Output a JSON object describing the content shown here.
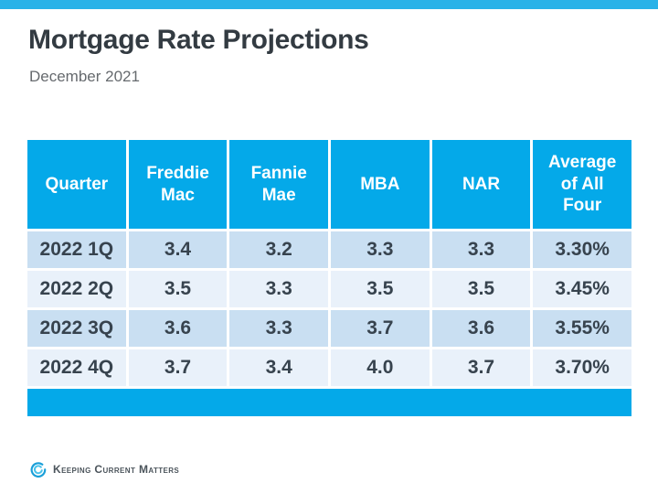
{
  "page": {
    "title": "Mortgage Rate Projections",
    "subtitle": "December 2021"
  },
  "colors": {
    "top_bar_blue": "#29b2e8",
    "table_header_blue": "#04a9e9",
    "row_dark": "#c9dff2",
    "row_light": "#e9f1fa",
    "cell_text": "#37434e",
    "title_text": "#333b42"
  },
  "table": {
    "columns": [
      "Quarter",
      "Freddie Mac",
      "Fannie Mae",
      "MBA",
      "NAR",
      "Average of All Four"
    ],
    "rows": [
      [
        "2022 1Q",
        "3.4",
        "3.2",
        "3.3",
        "3.3",
        "3.30%"
      ],
      [
        "2022 2Q",
        "3.5",
        "3.3",
        "3.5",
        "3.5",
        "3.45%"
      ],
      [
        "2022 3Q",
        "3.6",
        "3.3",
        "3.7",
        "3.6",
        "3.55%"
      ],
      [
        "2022 4Q",
        "3.7",
        "3.4",
        "4.0",
        "3.7",
        "3.70%"
      ]
    ]
  },
  "chart_data": {
    "type": "table",
    "title": "Mortgage Rate Projections",
    "subtitle": "December 2021",
    "columns": [
      "Quarter",
      "Freddie Mac",
      "Fannie Mae",
      "MBA",
      "NAR",
      "Average of All Four"
    ],
    "rows": [
      {
        "quarter": "2022 1Q",
        "freddie_mac": 3.4,
        "fannie_mae": 3.2,
        "mba": 3.3,
        "nar": 3.3,
        "average_of_all_four": "3.30%"
      },
      {
        "quarter": "2022 2Q",
        "freddie_mac": 3.5,
        "fannie_mae": 3.3,
        "mba": 3.5,
        "nar": 3.5,
        "average_of_all_four": "3.45%"
      },
      {
        "quarter": "2022 3Q",
        "freddie_mac": 3.6,
        "fannie_mae": 3.3,
        "mba": 3.7,
        "nar": 3.6,
        "average_of_all_four": "3.55%"
      },
      {
        "quarter": "2022 4Q",
        "freddie_mac": 3.7,
        "fannie_mae": 3.4,
        "mba": 4.0,
        "nar": 3.7,
        "average_of_all_four": "3.70%"
      }
    ]
  },
  "footer": {
    "logo_text": "Keeping Current Matters",
    "logo_icon": "kcm-swirl-icon"
  }
}
